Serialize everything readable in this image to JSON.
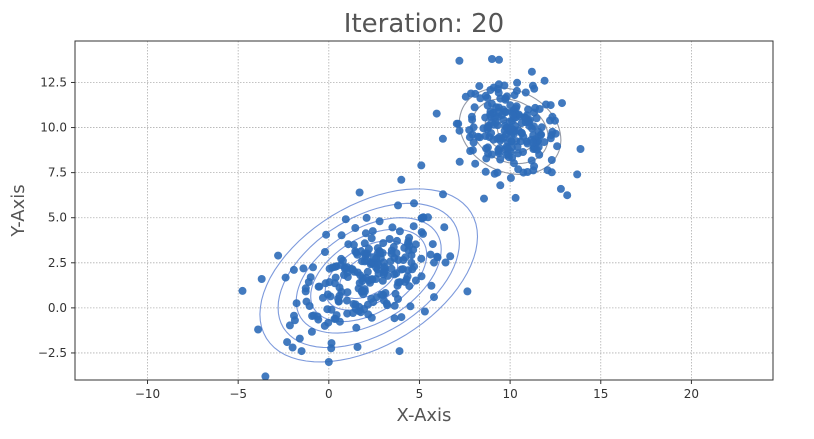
{
  "chart_data": {
    "type": "scatter",
    "title": "Iteration: 20",
    "xlabel": "X-Axis",
    "ylabel": "Y-Axis",
    "xlim": [
      -14,
      24.5
    ],
    "ylim": [
      -4,
      14.8
    ],
    "xticks": [
      -10,
      -5,
      0,
      5,
      10,
      15,
      20
    ],
    "xtick_labels": [
      "−10",
      "−5",
      "0",
      "5",
      "10",
      "15",
      "20"
    ],
    "yticks": [
      -2.5,
      0.0,
      2.5,
      5.0,
      7.5,
      10.0,
      12.5
    ],
    "ytick_labels": [
      "−2.5",
      "0.0",
      "2.5",
      "5.0",
      "7.5",
      "10.0",
      "12.5"
    ],
    "grid": true,
    "colors": {
      "points": "#2e6bb8",
      "contour_cluster_1": "#6f8fd8",
      "contour_cluster_2": "#8a8f9c",
      "grid": "#b0b0b0",
      "axes": "#333333"
    },
    "clusters": [
      {
        "center": [
          2.2,
          1.8
        ],
        "sd": [
          2.0,
          1.6
        ],
        "rho": 0.45,
        "n": 220
      },
      {
        "center": [
          10.0,
          9.8
        ],
        "sd": [
          1.4,
          1.2
        ],
        "rho": -0.2,
        "n": 200
      }
    ],
    "highlighted_points": [
      [
        -3.5,
        -3.8
      ],
      [
        -3.9,
        -1.2
      ],
      [
        -3.7,
        1.6
      ],
      [
        -2.3,
        -1.9
      ],
      [
        -1.5,
        -2.4
      ],
      [
        0.0,
        -3.0
      ],
      [
        3.9,
        -2.4
      ],
      [
        5.1,
        7.9
      ],
      [
        4.0,
        7.1
      ],
      [
        6.3,
        6.3
      ],
      [
        5.8,
        0.6
      ],
      [
        7.2,
        13.7
      ],
      [
        9.0,
        13.8
      ],
      [
        11.9,
        12.6
      ],
      [
        13.7,
        7.4
      ],
      [
        10.3,
        6.1
      ],
      [
        12.8,
        6.6
      ],
      [
        1.7,
        6.4
      ],
      [
        6.0,
        2.8
      ],
      [
        2.8,
        4.8
      ],
      [
        4.7,
        5.8
      ],
      [
        -2.8,
        2.9
      ],
      [
        8.3,
        12.3
      ],
      [
        11.2,
        13.1
      ],
      [
        7.8,
        8.7
      ],
      [
        12.3,
        8.2
      ],
      [
        9.3,
        7.5
      ],
      [
        -1.0,
        1.7
      ],
      [
        5.3,
        -0.2
      ],
      [
        -2.0,
        -2.2
      ]
    ],
    "contours": [
      {
        "cluster": 0,
        "mahalanobis": [
          0.8,
          1.2,
          1.6,
          2.0,
          2.5,
          3.0
        ]
      },
      {
        "cluster": 1,
        "mahalanobis": [
          0.5,
          1.0,
          1.5,
          2.0
        ]
      }
    ]
  }
}
